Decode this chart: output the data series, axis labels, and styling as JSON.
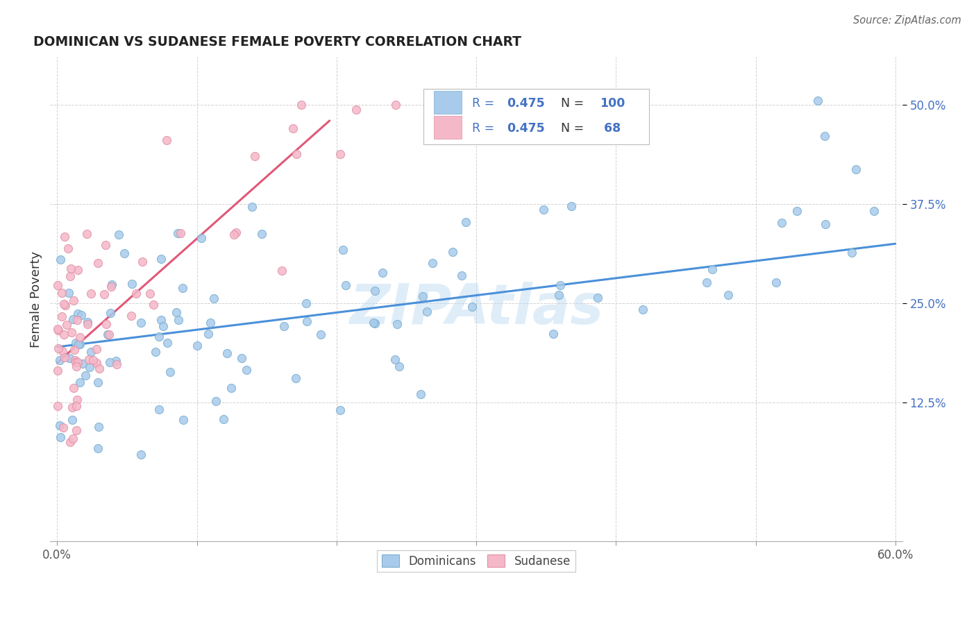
{
  "title": "DOMINICAN VS SUDANESE FEMALE POVERTY CORRELATION CHART",
  "source": "Source: ZipAtlas.com",
  "ylabel": "Female Poverty",
  "xlim": [
    -0.005,
    0.605
  ],
  "ylim": [
    -0.05,
    0.56
  ],
  "xticks": [
    0.0,
    0.1,
    0.2,
    0.3,
    0.4,
    0.5,
    0.6
  ],
  "xtick_labels": [
    "0.0%",
    "",
    "",
    "",
    "",
    "",
    "60.0%"
  ],
  "ytick_labels": [
    "12.5%",
    "25.0%",
    "37.5%",
    "50.0%"
  ],
  "ytick_positions": [
    0.125,
    0.25,
    0.375,
    0.5
  ],
  "blue_color": "#A8CBEB",
  "blue_edge": "#7AAFD0",
  "pink_color": "#F5B8C8",
  "pink_edge": "#E090A8",
  "trendline_blue": "#4A90D9",
  "trendline_pink": "#E05878",
  "legend_text_color": "#4472C4",
  "legend_N_color": "#4472C4",
  "axis_label_color": "#333333",
  "ytick_color": "#4472C4",
  "grid_color": "#CCCCCC",
  "blue_R": 0.475,
  "blue_N": 100,
  "pink_R": 0.475,
  "pink_N": 68,
  "watermark": "ZIPAtlas",
  "dominicans_label": "Dominicans",
  "sudanese_label": "Sudanese",
  "blue_trend_x": [
    0.0,
    0.6
  ],
  "blue_trend_y": [
    0.195,
    0.325
  ],
  "pink_trend_x": [
    0.0,
    0.195
  ],
  "pink_trend_y": [
    0.175,
    0.48
  ]
}
